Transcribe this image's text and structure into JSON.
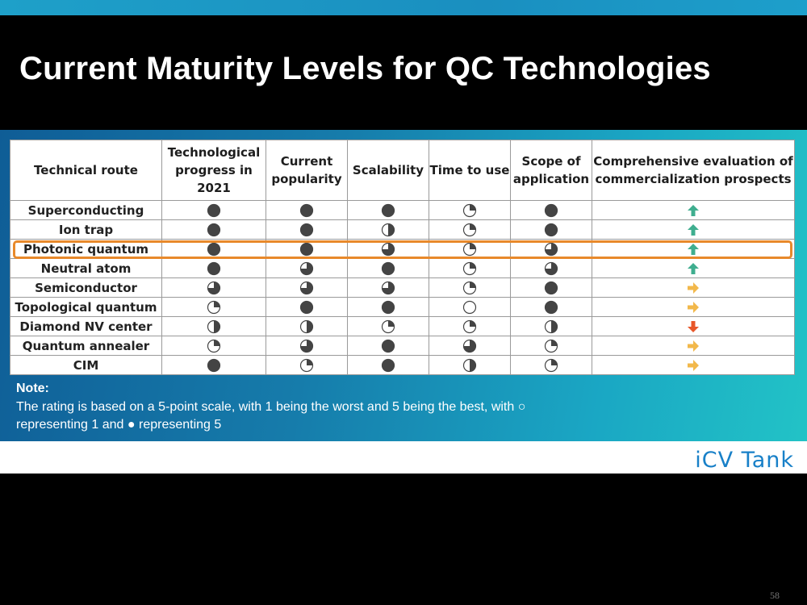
{
  "slide": {
    "title": "Current Maturity Levels for QC Technologies",
    "page_number": "58",
    "accent_color": "#1ea0c9",
    "background_color": "#000000"
  },
  "table": {
    "headers": [
      "Technical route",
      "Technological progress in 2021",
      "Current popularity",
      "Scalability",
      "Time to use",
      "Scope of application",
      "Comprehensive evaluation of commercialization prospects"
    ],
    "rows": [
      {
        "route": "Superconducting",
        "ratings": [
          5,
          5,
          5,
          2,
          5
        ],
        "prospect": "up"
      },
      {
        "route": "Ion trap",
        "ratings": [
          5,
          5,
          3,
          2,
          5
        ],
        "prospect": "up"
      },
      {
        "route": "Photonic quantum",
        "ratings": [
          5,
          5,
          4,
          2,
          4
        ],
        "prospect": "up",
        "highlighted": true
      },
      {
        "route": "Neutral atom",
        "ratings": [
          5,
          4,
          5,
          2,
          4
        ],
        "prospect": "up"
      },
      {
        "route": "Semiconductor",
        "ratings": [
          4,
          4,
          4,
          2,
          5
        ],
        "prospect": "right"
      },
      {
        "route": "Topological quantum",
        "ratings": [
          2,
          5,
          5,
          1,
          5
        ],
        "prospect": "right"
      },
      {
        "route": "Diamond NV center",
        "ratings": [
          3,
          3,
          2,
          2,
          3
        ],
        "prospect": "down"
      },
      {
        "route": "Quantum annealer",
        "ratings": [
          2,
          4,
          5,
          4,
          2
        ],
        "prospect": "right"
      },
      {
        "route": "CIM",
        "ratings": [
          5,
          2,
          5,
          3,
          2
        ],
        "prospect": "right"
      }
    ],
    "prospect_colors": {
      "up": "#3fae8f",
      "right": "#f2b84b",
      "down": "#e8572a"
    },
    "highlight_color": "#e8892b"
  },
  "note": {
    "title": "Note:",
    "text": "The rating is based on a 5-point scale, with 1 being the worst and 5 being the best, with ○ representing 1 and ● representing 5"
  },
  "brand": {
    "name": "iCV Tank",
    "color": "#1880c8"
  }
}
